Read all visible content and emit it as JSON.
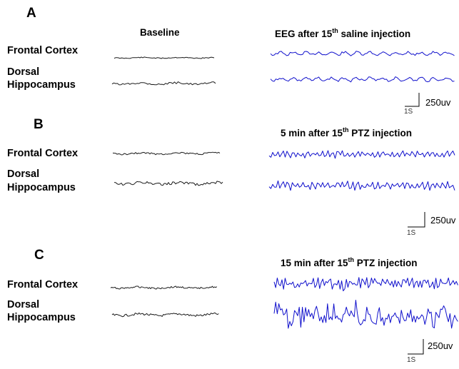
{
  "colors": {
    "baseline_trace": "#1a1a1a",
    "treatment_trace": "#1010cc"
  },
  "panels": [
    {
      "letter": "A",
      "baseline_header": "Baseline",
      "treatment_header": {
        "pre": "EEG after 15",
        "sup": "th",
        "post": " saline  injection"
      },
      "regions": [
        "Frontal Cortex",
        "Dorsal",
        "Hippocampus"
      ],
      "scale_bar": {
        "voltage": "250uv",
        "time": "1S"
      }
    },
    {
      "letter": "B",
      "treatment_header": {
        "pre": "5 min after 15",
        "sup": "th",
        "post": " PTZ injection"
      },
      "regions": [
        "Frontal Cortex",
        "Dorsal",
        "Hippocampus"
      ],
      "scale_bar": {
        "voltage": "250uv",
        "time": "1S"
      }
    },
    {
      "letter": "C",
      "treatment_header": {
        "pre": "15 min after 15",
        "sup": "th",
        "post": " PTZ injection"
      },
      "regions": [
        "Frontal Cortex",
        "Dorsal",
        "Hippocampus"
      ],
      "scale_bar": {
        "voltage": "250uv",
        "time": "1S"
      }
    }
  ]
}
